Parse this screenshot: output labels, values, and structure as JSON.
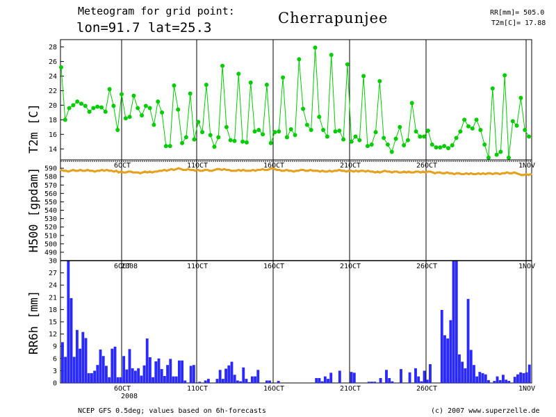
{
  "header": {
    "title_line1": "Meteogram for grid point:",
    "title_line2": "lon=91.7 lat=25.3",
    "location": "Cherrapunjee",
    "stat_rr": "RR[mm]= 505.0",
    "stat_t2m": "T2m[C]= 17.88"
  },
  "footer": {
    "source": "NCEP GFS 0.5deg; values based on 6h-forecasts",
    "copyright": "(c) 2007 www.superzelle.de"
  },
  "colors": {
    "t2m": "#00cc00",
    "h500": "#e6a020",
    "rr": "#2a2aff",
    "grid": "#000000"
  },
  "chart_data": [
    {
      "type": "line",
      "title": "",
      "ylabel": "T2m [C]",
      "ylim": [
        12.5,
        29
      ],
      "yticks": [
        14,
        16,
        18,
        20,
        22,
        24,
        26,
        28
      ],
      "x_labels": [
        "6OCT",
        "11OCT",
        "16OCT",
        "21OCT",
        "26OCT",
        "1NOV"
      ],
      "x_start": "2 OCT 2008 06UTC",
      "x_step_hours": 6,
      "series": [
        {
          "values": [
            25.2,
            18.0,
            19.6,
            20.0,
            20.5,
            20.2,
            19.9,
            19.1,
            19.6,
            19.8,
            19.7,
            19.1,
            22.2,
            19.9,
            16.6,
            21.5,
            18.2,
            18.4,
            21.3,
            19.6,
            18.6,
            19.9,
            19.6,
            17.3,
            20.5,
            19.0,
            14.4,
            14.4,
            22.7,
            19.4,
            14.8,
            15.6,
            21.6,
            15.3,
            17.7,
            16.3,
            22.8,
            15.9,
            14.3,
            15.6,
            25.4,
            17.0,
            15.2,
            15.1,
            24.3,
            15.0,
            14.9,
            23.1,
            16.4,
            16.6,
            16.0,
            22.8,
            14.8,
            16.3,
            16.4,
            23.8,
            15.6,
            16.7,
            15.9,
            26.3,
            19.5,
            17.3,
            16.6,
            27.9,
            18.4,
            16.6,
            15.7,
            26.9,
            16.4,
            16.5,
            15.3,
            25.6,
            15.0,
            15.7,
            15.2,
            24.0,
            14.4,
            14.6,
            16.3,
            23.3,
            15.5,
            14.6,
            13.6,
            15.4,
            17.0,
            14.5,
            15.2,
            20.3,
            16.4,
            15.7,
            15.7,
            16.5,
            14.6,
            14.2,
            14.2,
            14.4,
            14.1,
            14.5,
            15.5,
            16.4,
            18.0,
            17.1,
            16.8,
            18.0,
            16.6,
            14.6,
            12.8,
            22.3,
            13.2,
            13.6,
            24.1,
            12.8,
            17.8,
            17.2,
            21.0,
            16.6,
            15.7
          ]
        }
      ]
    },
    {
      "type": "line",
      "title": "",
      "ylabel": "H500 [gpdam]",
      "ylim": [
        480,
        600
      ],
      "yticks": [
        490,
        500,
        510,
        520,
        530,
        540,
        550,
        560,
        570,
        580,
        590
      ],
      "x_labels": [
        "6OCT",
        "11OCT",
        "16OCT",
        "21OCT",
        "26OCT",
        "1NOV"
      ],
      "x_sublabel": "2008",
      "series": [
        {
          "values": [
            588,
            587,
            587,
            586,
            587,
            588,
            587,
            587,
            588,
            587,
            587,
            588,
            587,
            587,
            586,
            587,
            587,
            588,
            587,
            588,
            587,
            587,
            586,
            587,
            585,
            586,
            585,
            585,
            586,
            586,
            585,
            585,
            585,
            584,
            585,
            586,
            585,
            586,
            585,
            586,
            586,
            587,
            587,
            588,
            587,
            588,
            589,
            588,
            589,
            590,
            589,
            588,
            588,
            589,
            588,
            588,
            587,
            588,
            587,
            587,
            588,
            588,
            587,
            587,
            588,
            589,
            589,
            588,
            589,
            588,
            588,
            587,
            587,
            587,
            588,
            587,
            588,
            587,
            587,
            587,
            588,
            587,
            588,
            588,
            589,
            588,
            588,
            589,
            590,
            589,
            588,
            588,
            587,
            587,
            588,
            587,
            587,
            586,
            587,
            587,
            588,
            588,
            587,
            587,
            588,
            587,
            587,
            587,
            586,
            587,
            586,
            586,
            587,
            586,
            587,
            587,
            588,
            587,
            587,
            586,
            587,
            587,
            586,
            587,
            586,
            587,
            587,
            586,
            587,
            586,
            586,
            585,
            586,
            585,
            586,
            587,
            586,
            586,
            585,
            586,
            586,
            585,
            585,
            586,
            585,
            586,
            585,
            585,
            586,
            586,
            585,
            586,
            585,
            586,
            586,
            585,
            584,
            585,
            585,
            584,
            584,
            585,
            584,
            584,
            583,
            584,
            584,
            583,
            583,
            584,
            583,
            584,
            583,
            583,
            584,
            583,
            584,
            583,
            584,
            584,
            583,
            584,
            584,
            583,
            584,
            584,
            585,
            584,
            584,
            585,
            584,
            583,
            582,
            582,
            583,
            582,
            583
          ]
        }
      ]
    },
    {
      "type": "bar",
      "title": "",
      "ylabel": "RR6h [mm]",
      "ylim": [
        0,
        30
      ],
      "yticks": [
        0,
        3,
        6,
        9,
        12,
        15,
        18,
        21,
        24,
        27,
        30
      ],
      "x_labels": [
        "6OCT",
        "11OCT",
        "16OCT",
        "21OCT",
        "26OCT",
        "1NOV"
      ],
      "x_sublabel": "2008",
      "series": [
        {
          "values": [
            10.0,
            6.4,
            30.0,
            20.8,
            6.4,
            13.0,
            8.4,
            12.5,
            11.0,
            2.4,
            2.4,
            3.0,
            4.4,
            8.2,
            6.6,
            4.2,
            1.4,
            8.4,
            8.9,
            1.4,
            1.4,
            6.6,
            3.3,
            8.3,
            3.6,
            3.0,
            3.6,
            1.8,
            4.3,
            10.9,
            6.3,
            1.4,
            5.3,
            6.0,
            3.4,
            1.7,
            4.4,
            5.9,
            1.6,
            1.6,
            5.5,
            5.5,
            0.6,
            0.0,
            4.2,
            4.4,
            0.0,
            0.3,
            0.0,
            0.6,
            1.0,
            0.0,
            0.0,
            1.0,
            3.2,
            1.0,
            3.5,
            4.3,
            5.2,
            2.0,
            0.6,
            0.4,
            3.8,
            1.0,
            0.2,
            1.6,
            1.6,
            3.2,
            0.0,
            0.0,
            0.6,
            0.6,
            0.0,
            0.0,
            0.5,
            0.0,
            0.0,
            0.0,
            0.0,
            0.0,
            0.0,
            0.0,
            0.0,
            0.0,
            0.0,
            0.0,
            0.0,
            1.2,
            1.2,
            0.4,
            1.6,
            1.0,
            2.5,
            0.0,
            0.0,
            3.0,
            0.0,
            0.0,
            0.0,
            2.7,
            2.5,
            0.0,
            0.0,
            0.0,
            0.0,
            0.3,
            0.3,
            0.3,
            0.0,
            1.2,
            0.0,
            3.2,
            1.2,
            0.4,
            0.0,
            0.0,
            3.4,
            0.0,
            0.0,
            2.6,
            0.0,
            3.6,
            1.6,
            0.4,
            3.0,
            0.8,
            4.6,
            0.0,
            0.0,
            0.0,
            17.9,
            11.7,
            10.9,
            15.4,
            30.0,
            30.0,
            7.0,
            5.2,
            3.6,
            20.6,
            8.1,
            4.4,
            1.6,
            2.7,
            2.4,
            2.1,
            0.7,
            0.0,
            0.5,
            1.6,
            0.7,
            2.0,
            0.8,
            0.5,
            0.0,
            1.5,
            2.1,
            2.6,
            2.4,
            2.6,
            4.5
          ]
        }
      ]
    }
  ]
}
